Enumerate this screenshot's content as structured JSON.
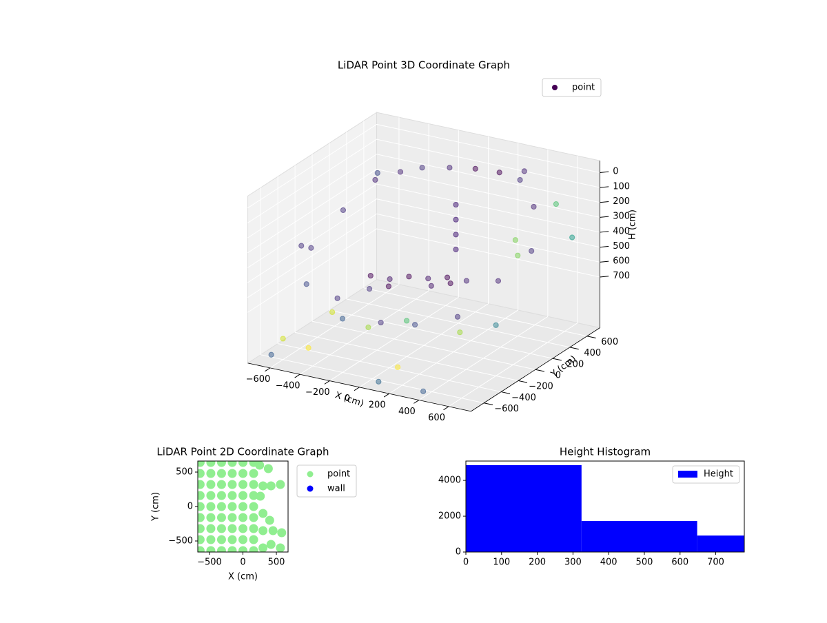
{
  "chart_data": [
    {
      "type": "scatter3d",
      "title": "LiDAR Point 3D Coordinate Graph",
      "x_label": "X (cm)",
      "y_label": "Y (cm)",
      "z_label": "H (cm)",
      "xlim": [
        -750,
        750
      ],
      "ylim": [
        -750,
        750
      ],
      "zlim": [
        1040,
        -80
      ],
      "xticks": [
        {
          "value": -600,
          "label": "−600"
        },
        {
          "value": -400,
          "label": "−400"
        },
        {
          "value": -200,
          "label": "−200"
        },
        0,
        200,
        400,
        600
      ],
      "yticks": [
        {
          "value": -600,
          "label": "−600"
        },
        {
          "value": -400,
          "label": "−400"
        },
        {
          "value": -200,
          "label": "−200"
        },
        0,
        200,
        400,
        600
      ],
      "zticks": [
        0,
        100,
        200,
        300,
        400,
        500,
        600,
        700
      ],
      "legend": "upper right",
      "series": [
        {
          "name": "point",
          "color": "#440154",
          "x": [
            -500,
            -400,
            -300,
            -150,
            0,
            150,
            300,
            100,
            100,
            100,
            100,
            -300,
            -200,
            -100,
            0,
            100,
            200,
            -250,
            -150,
            50,
            150,
            -650,
            -600,
            -500,
            -350,
            -200,
            0,
            200,
            400,
            500,
            550,
            450,
            300,
            -600,
            -700,
            -600,
            -400,
            -200,
            0,
            300,
            500,
            600,
            400,
            -500,
            200,
            600,
            650,
            -650,
            100,
            400
          ],
          "y": [
            300,
            420,
            500,
            560,
            600,
            620,
            600,
            200,
            200,
            200,
            200,
            -100,
            -50,
            0,
            50,
            100,
            150,
            -200,
            -150,
            0,
            50,
            -300,
            100,
            -500,
            -400,
            -600,
            -500,
            -450,
            -300,
            0,
            300,
            500,
            650,
            500,
            -100,
            -600,
            -650,
            -300,
            -200,
            -100,
            200,
            500,
            400,
            -200,
            -650,
            -200,
            600,
            -650,
            -700,
            -700
          ],
          "z": [
            150,
            120,
            100,
            90,
            80,
            80,
            90,
            150,
            250,
            350,
            450,
            600,
            620,
            600,
            610,
            600,
            620,
            640,
            620,
            630,
            610,
            400,
            300,
            550,
            650,
            680,
            700,
            690,
            650,
            500,
            400,
            200,
            50,
            200,
            500,
            900,
            900,
            850,
            800,
            850,
            300,
            150,
            500,
            850,
            900,
            700,
            400,
            1000,
            1000,
            1000
          ],
          "colors": [
            "#482576",
            "#482576",
            "#46327e",
            "#482576",
            "#440154",
            "#440154",
            "#46327e",
            "#3b0f70",
            "#3b0f70",
            "#3b0f70",
            "#3b0f70",
            "#440154",
            "#481a6c",
            "#440154",
            "#481a6c",
            "#440154",
            "#482576",
            "#46327e",
            "#440154",
            "#481a6c",
            "#440154",
            "#46327e",
            "#46327e",
            "#3e4989",
            "#46327e",
            "#365c8d",
            "#46327e",
            "#3e4989",
            "#46327e",
            "#482576",
            "#46327e",
            "#482576",
            "#482576",
            "#3e4989",
            "#46327e",
            "#d0e11c",
            "#fde725",
            "#a0da39",
            "#4ac16d",
            "#a0da39",
            "#7ad151",
            "#4ac16d",
            "#7ad151",
            "#d0e11c",
            "#fde725",
            "#277f8e",
            "#1f9e89",
            "#365c8d",
            "#31688e",
            "#365c8d"
          ]
        }
      ]
    },
    {
      "type": "scatter",
      "title": "LiDAR Point 2D Coordinate Graph",
      "x_label": "X (cm)",
      "y_label": "Y (cm)",
      "xlim": [
        -675,
        675
      ],
      "ylim": [
        -660,
        660
      ],
      "xticks": [
        {
          "value": -500,
          "label": "−500"
        },
        0,
        500
      ],
      "yticks": [
        {
          "value": -500,
          "label": "−500"
        },
        0,
        500
      ],
      "legend": "outside right",
      "series": [
        {
          "name": "point",
          "color": "#90ee90",
          "x": [
            -640,
            -480,
            -320,
            -160,
            0,
            160,
            -640,
            -480,
            -320,
            -160,
            0,
            160,
            -640,
            -480,
            -320,
            -160,
            0,
            160,
            -640,
            -480,
            -320,
            -160,
            0,
            160,
            -640,
            -480,
            -320,
            -160,
            0,
            160,
            -640,
            -480,
            -320,
            -160,
            0,
            160,
            -640,
            -480,
            -320,
            -160,
            0,
            160,
            -640,
            -480,
            -320,
            -160,
            0,
            160,
            -640,
            -480,
            -320,
            -160,
            0,
            160,
            300,
            420,
            560,
            300,
            450,
            580,
            300,
            400,
            260,
            300,
            420,
            560,
            380,
            250
          ],
          "y": [
            -640,
            -640,
            -640,
            -640,
            -640,
            -640,
            -480,
            -480,
            -480,
            -480,
            -480,
            -480,
            -320,
            -320,
            -320,
            -320,
            -320,
            -320,
            -160,
            -160,
            -160,
            -160,
            -160,
            -160,
            0,
            0,
            0,
            0,
            0,
            0,
            160,
            160,
            160,
            160,
            160,
            160,
            320,
            320,
            320,
            320,
            320,
            320,
            480,
            480,
            480,
            480,
            480,
            480,
            640,
            640,
            640,
            640,
            640,
            640,
            -600,
            -550,
            -600,
            -350,
            -350,
            -380,
            -100,
            -200,
            150,
            300,
            300,
            320,
            550,
            600
          ]
        },
        {
          "name": "wall",
          "color": "#0000ff",
          "x": [],
          "y": []
        }
      ]
    },
    {
      "type": "histogram",
      "title": "Height Histogram",
      "bins": [
        0,
        324,
        648,
        972
      ],
      "xlim": [
        0,
        780
      ],
      "ylim": [
        0,
        5080
      ],
      "xticks": [
        0,
        100,
        200,
        300,
        400,
        500,
        600,
        700
      ],
      "yticks": [
        0,
        2000,
        4000
      ],
      "legend": "upper right",
      "series": [
        {
          "name": "Height",
          "color": "#0000ff",
          "values": [
            4850,
            1730,
            920
          ]
        }
      ]
    }
  ]
}
